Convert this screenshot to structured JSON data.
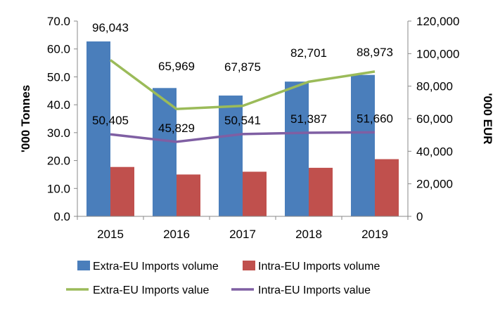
{
  "chart_data": {
    "type": "bar",
    "categories": [
      "2015",
      "2016",
      "2017",
      "2018",
      "2019"
    ],
    "bar_series": [
      {
        "name": "Extra-EU Imports volume",
        "color": "#4a7ebb",
        "values": [
          62.7,
          46.0,
          43.3,
          48.3,
          50.7
        ]
      },
      {
        "name": "Intra-EU Imports volume",
        "color": "#c0504d",
        "values": [
          17.7,
          15.0,
          16.0,
          17.4,
          20.5
        ]
      }
    ],
    "line_series": [
      {
        "name": "Extra-EU Imports value",
        "color": "#9bbb59",
        "values": [
          96043,
          65969,
          67875,
          82701,
          88973
        ],
        "labels": [
          "96,043",
          "65,969",
          "67,875",
          "82,701",
          "88,973"
        ]
      },
      {
        "name": "Intra-EU Imports value",
        "color": "#7f5fa3",
        "values": [
          50405,
          45829,
          50541,
          51387,
          51660
        ],
        "labels": [
          "50,405",
          "45,829",
          "50,541",
          "51,387",
          "51,660"
        ]
      }
    ],
    "y_left": {
      "label": "'000 Tonnes",
      "range": [
        0,
        70
      ],
      "ticks": [
        0,
        10,
        20,
        30,
        40,
        50,
        60,
        70
      ],
      "tick_labels": [
        "0.0",
        "10.0",
        "20.0",
        "30.0",
        "40.0",
        "50.0",
        "60.0",
        "70.0"
      ]
    },
    "y_right": {
      "label": "'000 EUR",
      "range": [
        0,
        120000
      ],
      "ticks": [
        0,
        20000,
        40000,
        60000,
        80000,
        100000,
        120000
      ],
      "tick_labels": [
        "0",
        "20,000",
        "40,000",
        "60,000",
        "80,000",
        "100,000",
        "120,000"
      ]
    },
    "grid": false,
    "legend_position": "bottom"
  }
}
